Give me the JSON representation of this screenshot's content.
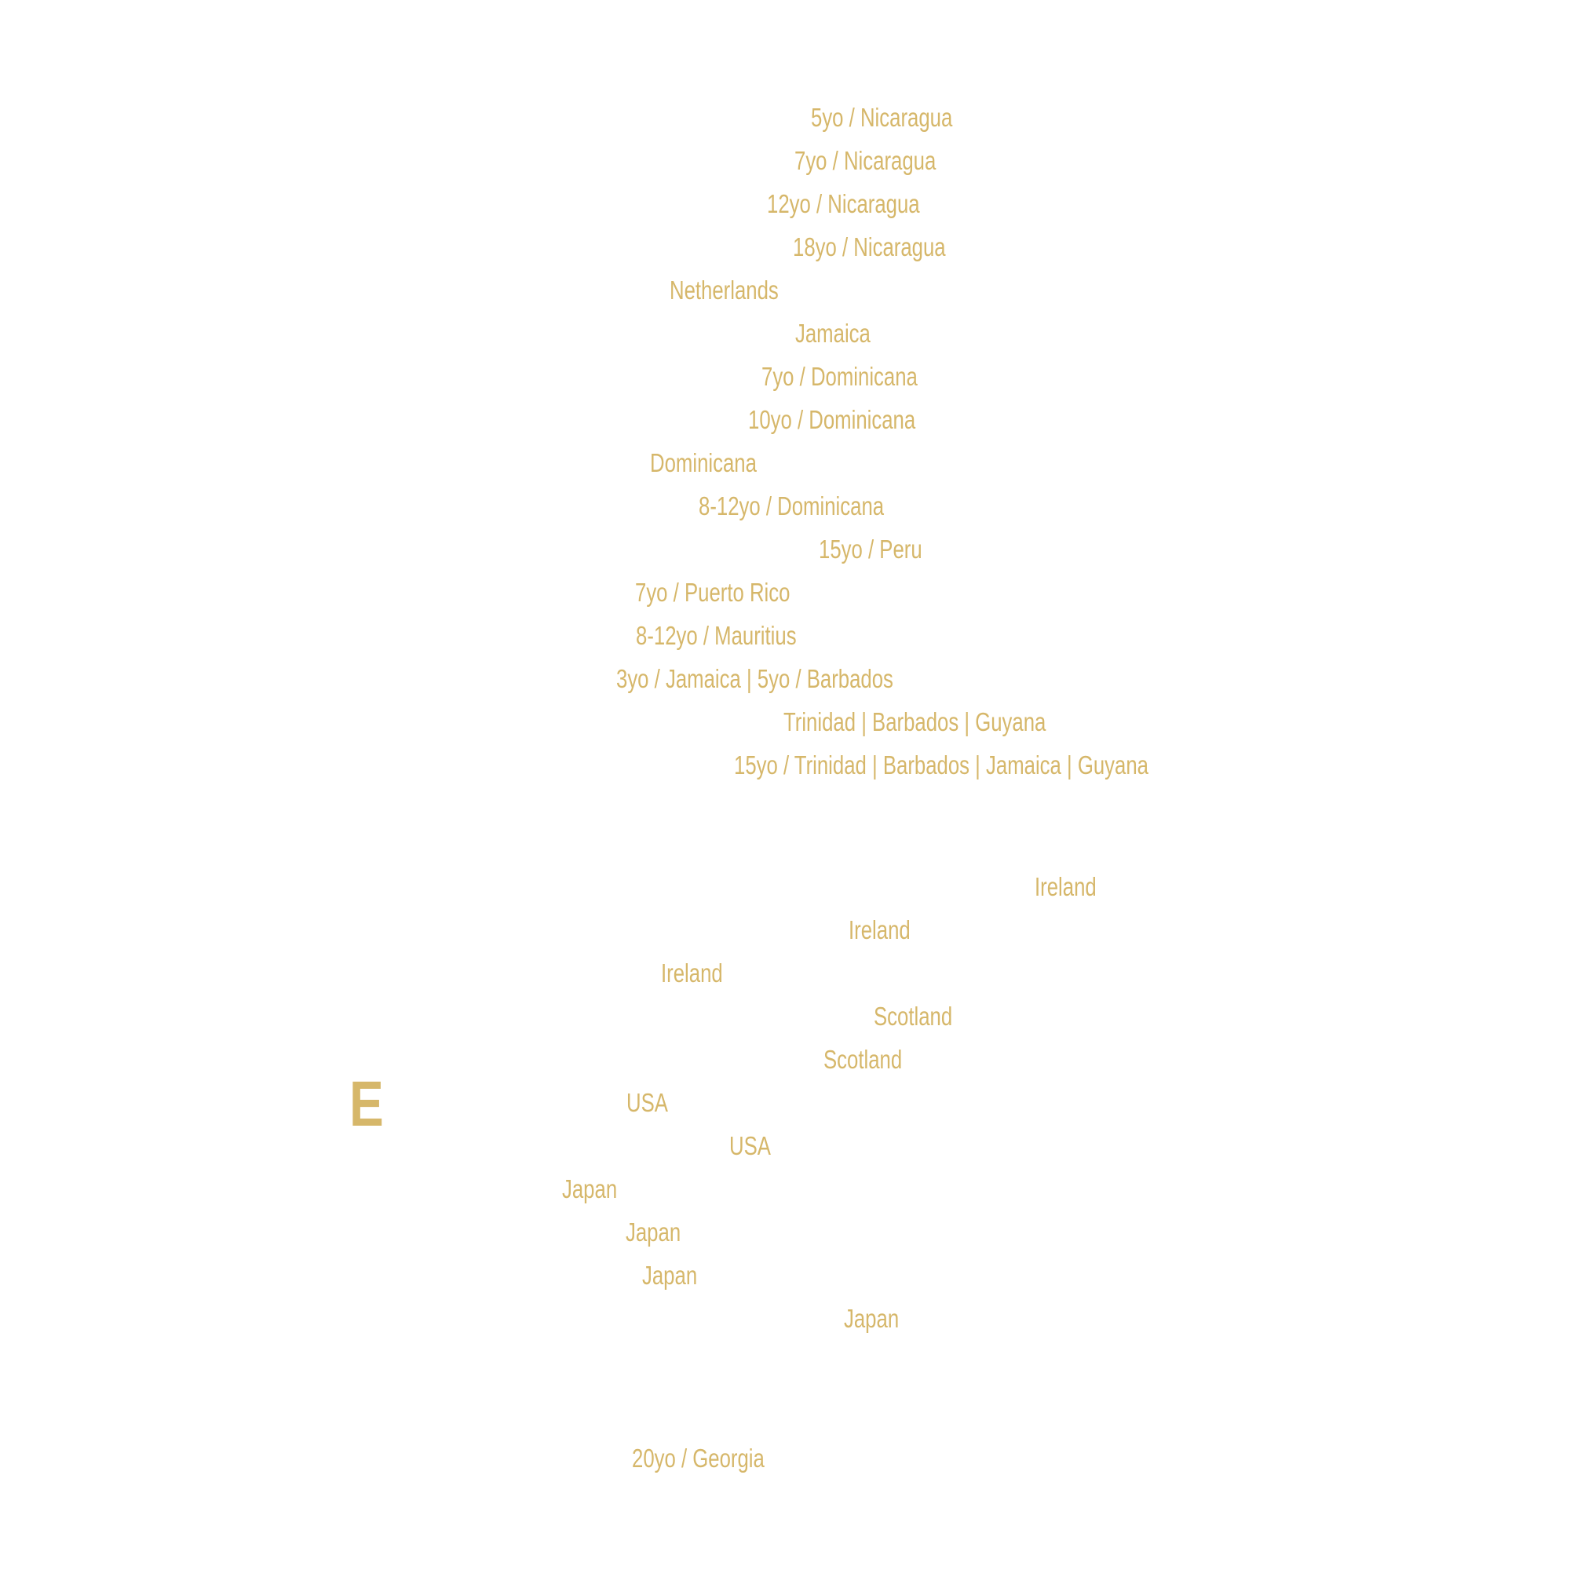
{
  "colors": {
    "accent": "#d6b76a",
    "background": "#ffffff"
  },
  "rum_section": {
    "items": [
      {
        "origin": "5yo / Nicaragua"
      },
      {
        "origin": "7yo / Nicaragua"
      },
      {
        "origin": "12yo / Nicaragua"
      },
      {
        "origin": "18yo / Nicaragua"
      },
      {
        "origin": "Netherlands"
      },
      {
        "origin": "Jamaica"
      },
      {
        "origin": "7yo / Dominicana"
      },
      {
        "origin": "10yo / Dominicana"
      },
      {
        "origin": "Dominicana"
      },
      {
        "origin": "8-12yo / Dominicana"
      },
      {
        "origin": "15yo / Peru"
      },
      {
        "origin": "7yo / Puerto Rico"
      },
      {
        "origin": "8-12yo / Mauritius"
      },
      {
        "origin": "3yo / Jamaica | 5yo / Barbados"
      },
      {
        "origin": "Trinidad | Barbados | Guyana"
      },
      {
        "origin": "15yo / Trinidad | Barbados | Jamaica | Guyana"
      }
    ]
  },
  "whiskey_section": {
    "letter": "E",
    "items": [
      {
        "origin": "Ireland"
      },
      {
        "origin": "Ireland"
      },
      {
        "origin": "Ireland"
      },
      {
        "origin": "Scotland"
      },
      {
        "origin": "Scotland"
      },
      {
        "origin": "USA"
      },
      {
        "origin": "USA"
      },
      {
        "origin": "Japan"
      },
      {
        "origin": "Japan"
      },
      {
        "origin": "Japan"
      },
      {
        "origin": "Japan"
      }
    ]
  },
  "brandy_section": {
    "items": [
      {
        "origin": "20yo / Georgia"
      }
    ]
  }
}
